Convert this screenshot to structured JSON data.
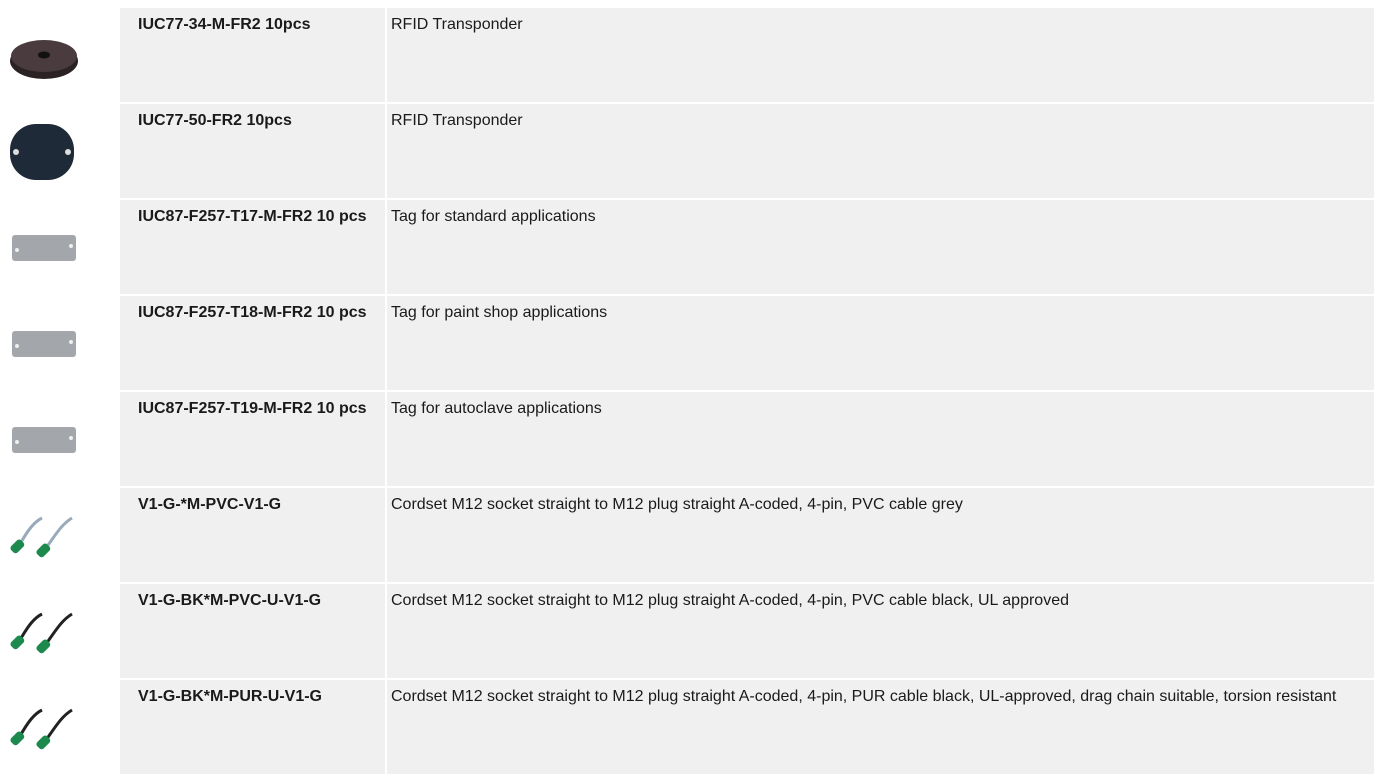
{
  "rows": [
    {
      "name": "IUC77-34-M-FR2 10pcs",
      "description": "RFID Transponder"
    },
    {
      "name": "IUC77-50-FR2 10pcs",
      "description": "RFID Transponder"
    },
    {
      "name": "IUC87-F257-T17-M-FR2 10 pcs",
      "description": "Tag for standard applications"
    },
    {
      "name": "IUC87-F257-T18-M-FR2 10 pcs",
      "description": "Tag for paint shop applications"
    },
    {
      "name": "IUC87-F257-T19-M-FR2 10 pcs",
      "description": "Tag for autoclave applications"
    },
    {
      "name": "V1-G-*M-PVC-V1-G",
      "description": "Cordset M12 socket straight to M12 plug straight A-coded, 4-pin, PVC cable grey"
    },
    {
      "name": "V1-G-BK*M-PVC-U-V1-G",
      "description": "Cordset M12 socket straight to M12 plug straight A-coded, 4-pin, PVC cable black, UL approved"
    },
    {
      "name": "V1-G-BK*M-PUR-U-V1-G",
      "description": "Cordset M12 socket straight to M12 plug straight A-coded, 4-pin, PUR cable black, UL-approved, drag chain suitable, torsion resistant"
    }
  ]
}
